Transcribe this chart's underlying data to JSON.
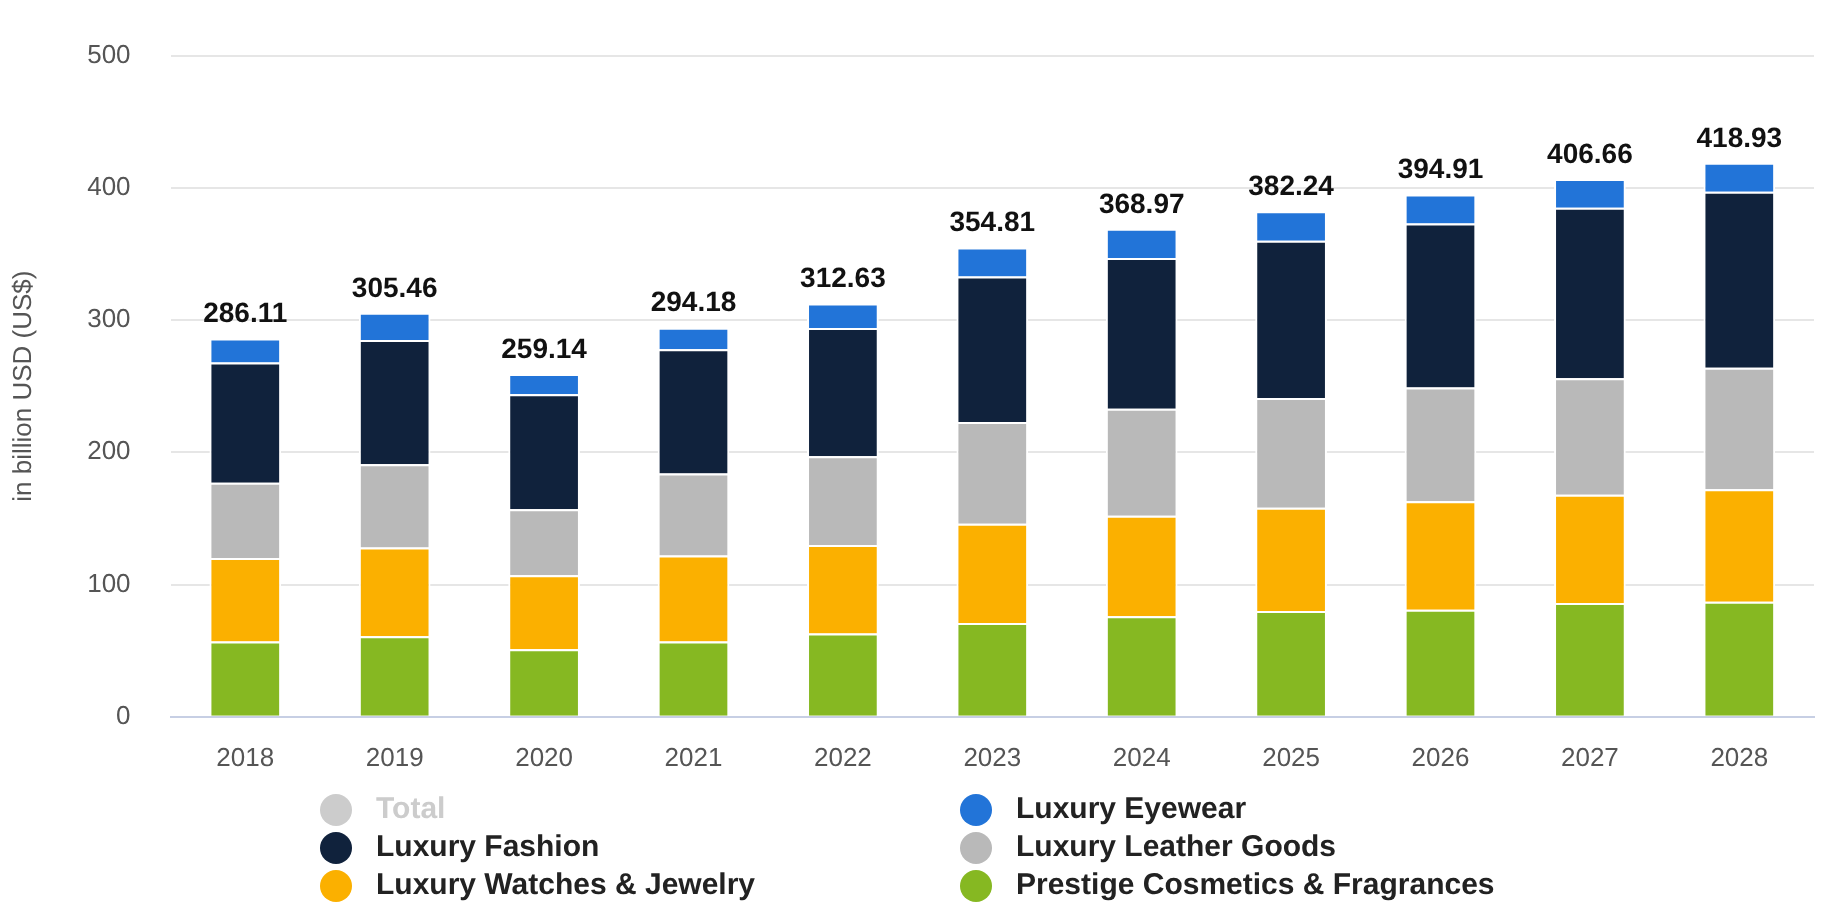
{
  "chart_data": {
    "type": "bar",
    "ylabel": "in billion USD (US$)",
    "categories": [
      "2018",
      "2019",
      "2020",
      "2021",
      "2022",
      "2023",
      "2024",
      "2025",
      "2026",
      "2027",
      "2028"
    ],
    "stacked": true,
    "series": [
      {
        "name": "Prestige Cosmetics & Fragrances",
        "color": "#86b822",
        "values": [
          57,
          61,
          51,
          57,
          63,
          71,
          76,
          80,
          81,
          86,
          87
        ]
      },
      {
        "name": "Luxury Watches & Jewelry",
        "color": "#fbb000",
        "values": [
          63,
          67,
          56,
          65,
          67,
          75,
          76,
          78,
          82,
          82,
          85
        ]
      },
      {
        "name": "Luxury Leather Goods",
        "color": "#b9b9b9",
        "values": [
          57,
          63,
          50,
          62,
          67,
          77,
          81,
          83,
          86,
          88,
          92
        ]
      },
      {
        "name": "Luxury Fashion",
        "color": "#10223c",
        "values": [
          91,
          94,
          87,
          94,
          97,
          110,
          114,
          119,
          124,
          129,
          133
        ]
      },
      {
        "name": "Luxury Eyewear",
        "color": "#2274d8",
        "values": [
          18.11,
          20.46,
          15.14,
          16.18,
          18.63,
          21.81,
          21.97,
          22.24,
          21.91,
          21.66,
          21.93
        ]
      },
      {
        "name": "Total",
        "color": "#cccccc",
        "values": [
          null,
          null,
          null,
          null,
          null,
          null,
          null,
          null,
          null,
          null,
          null
        ]
      }
    ],
    "totals": [
      "286.11",
      "305.46",
      "259.14",
      "294.18",
      "312.63",
      "354.81",
      "368.97",
      "382.24",
      "394.91",
      "406.66",
      "418.93"
    ],
    "ylim": [
      0,
      500
    ],
    "yticks": [
      0,
      100,
      200,
      300,
      400,
      500
    ],
    "grid": "y",
    "legend": "bottom"
  }
}
